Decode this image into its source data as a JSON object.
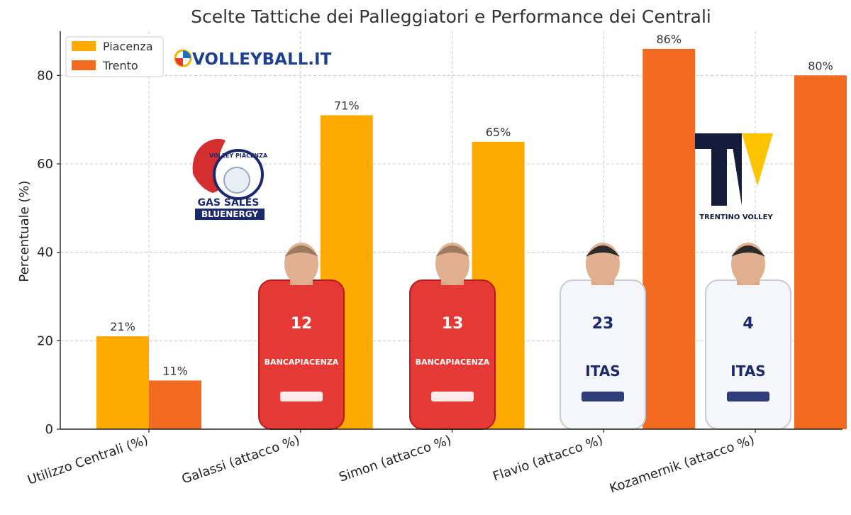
{
  "chart_data": {
    "type": "bar",
    "title": "Scelte Tattiche dei Palleggiatori e Performance dei Centrali",
    "ylabel": "Percentuale (%)",
    "xlabel": "",
    "categories": [
      "Utilizzo Centrali (%)",
      "Galassi (attacco %)",
      "Simon (attacco %)",
      "Flavio (attacco %)",
      "Kozamernik (attacco %)"
    ],
    "series": [
      {
        "name": "Piacenza",
        "color": "#FFAA00",
        "values": [
          21,
          71,
          65,
          null,
          null
        ]
      },
      {
        "name": "Trento",
        "color": "#F26B21",
        "values": [
          11,
          null,
          null,
          86,
          80
        ]
      }
    ],
    "data_labels": [
      "21%",
      "11%",
      "71%",
      "65%",
      "86%",
      "80%"
    ],
    "ylim": [
      0,
      90
    ],
    "yticks": [
      0,
      20,
      40,
      60,
      80
    ],
    "grid": true,
    "legend_position": "top-left"
  },
  "logos": {
    "volleyball": "VOLLEYBALL.IT",
    "piacenza_text1": "VOLLEY PIACENZA",
    "piacenza_text2": "GAS SALES",
    "piacenza_text3": "BLUENERGY",
    "trentino": "TRENTINO VOLLEY"
  },
  "players": [
    {
      "number": "12",
      "sponsor": "BANCAPIACENZA",
      "team": "piacenza"
    },
    {
      "number": "13",
      "sponsor": "BANCAPIACENZA",
      "team": "piacenza"
    },
    {
      "number": "23",
      "sponsor": "ITAS",
      "team": "trento"
    },
    {
      "number": "4",
      "sponsor": "ITAS",
      "team": "trento"
    }
  ]
}
